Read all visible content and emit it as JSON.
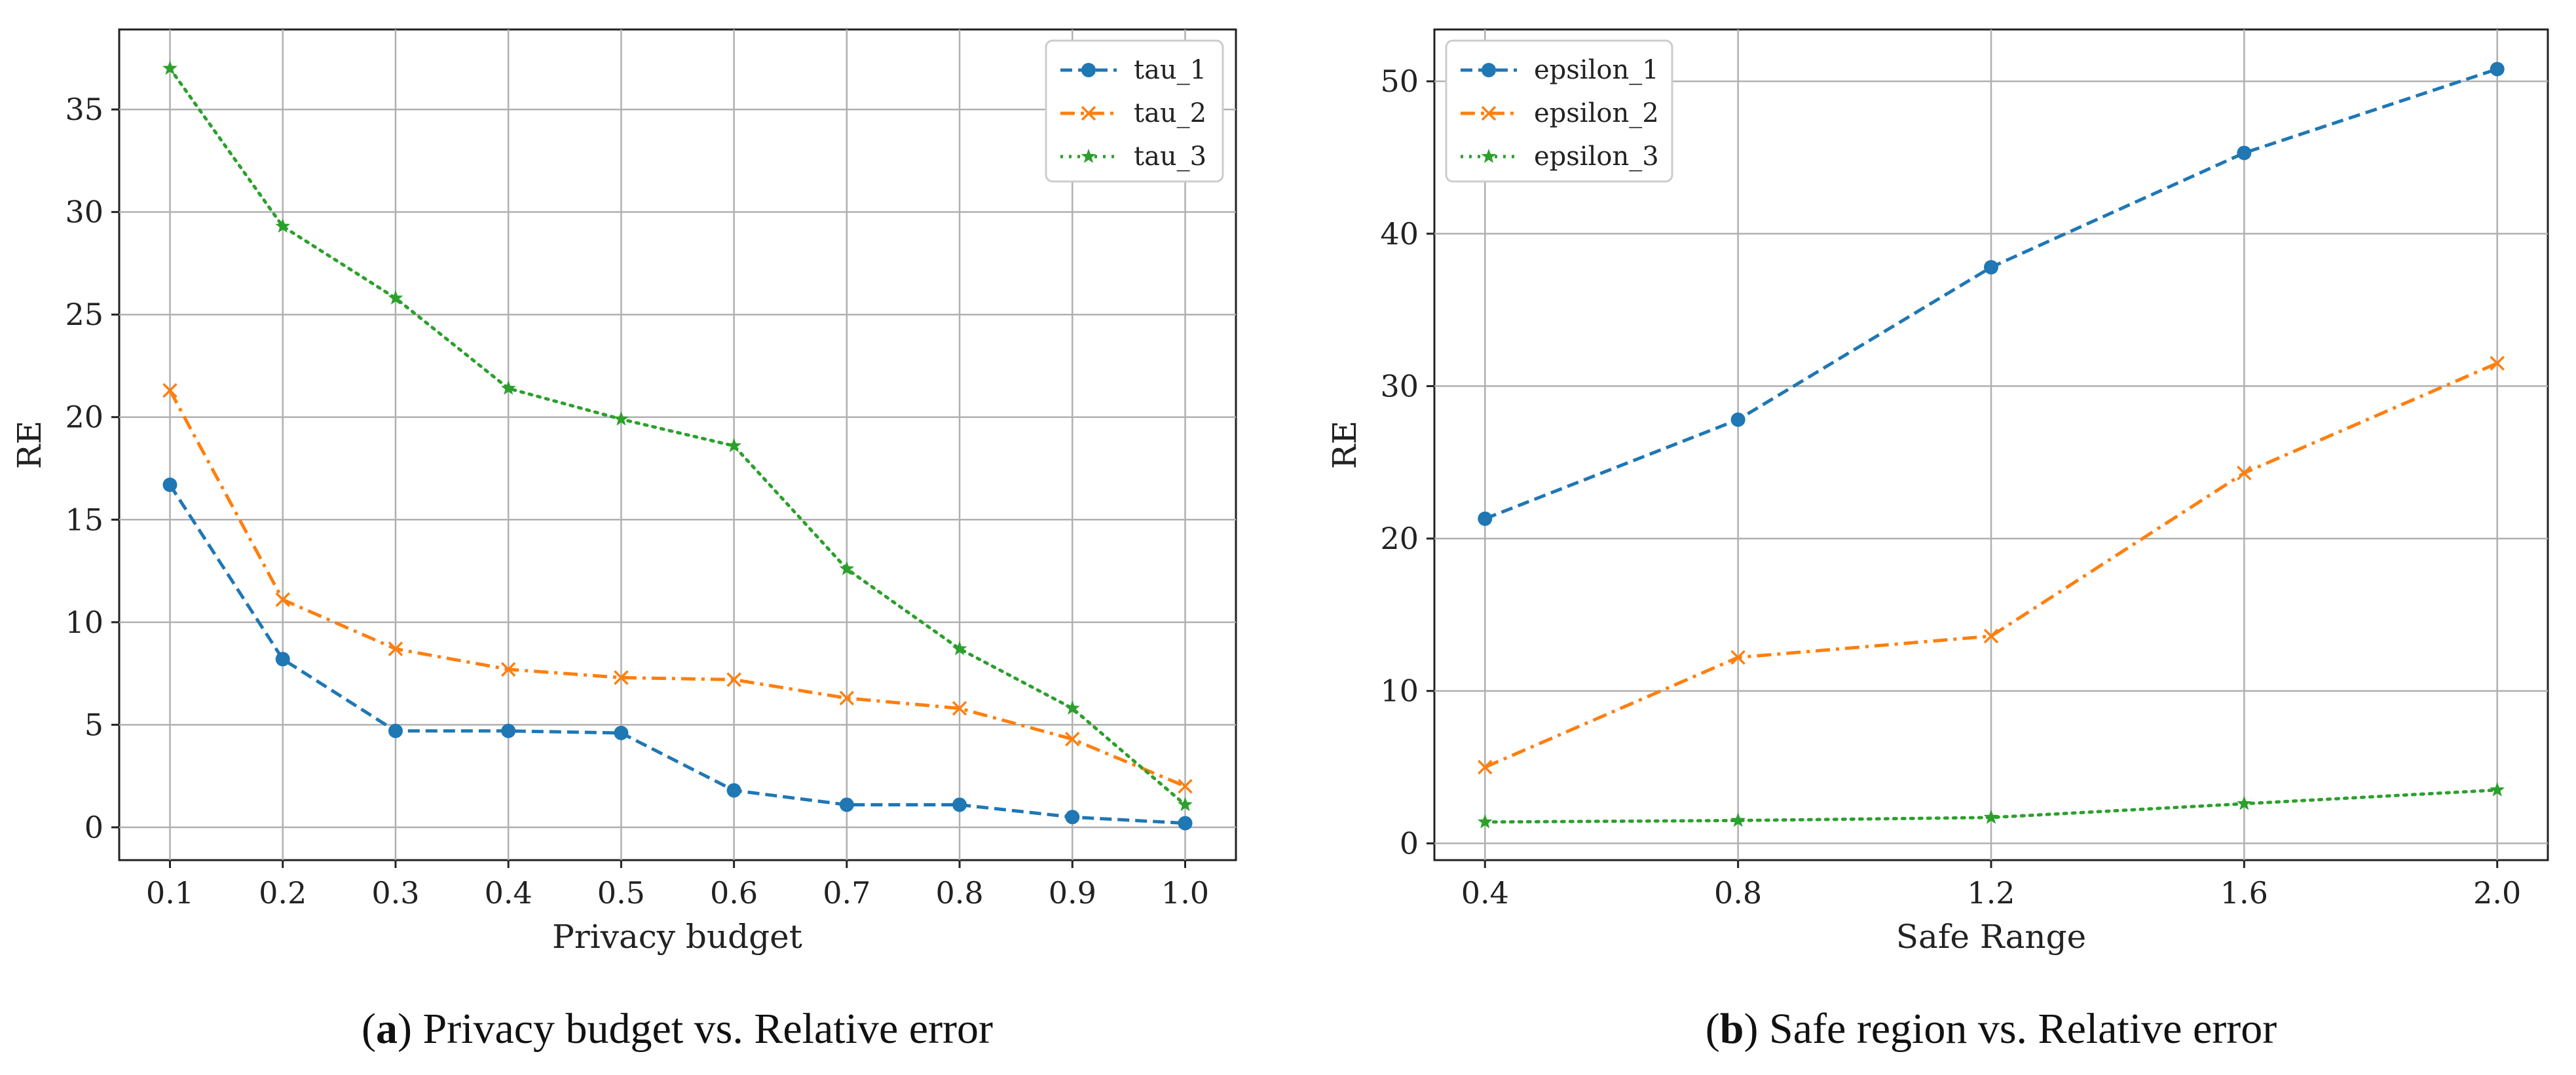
{
  "chart_data": [
    {
      "type": "line",
      "panel": "a",
      "caption_tag": "a",
      "caption_text": " Privacy budget vs. Relative error",
      "xlabel": "Privacy budget",
      "ylabel": "RE",
      "x": [
        0.1,
        0.2,
        0.3,
        0.4,
        0.5,
        0.6,
        0.7,
        0.8,
        0.9,
        1.0
      ],
      "xticks": [
        "0.1",
        "0.2",
        "0.3",
        "0.4",
        "0.5",
        "0.6",
        "0.7",
        "0.8",
        "0.9",
        "1.0"
      ],
      "xlim": [
        0.055,
        1.045
      ],
      "yticks": [
        0,
        5,
        10,
        15,
        20,
        25,
        30,
        35
      ],
      "ylim": [
        -1.6,
        38.9
      ],
      "grid": true,
      "legend_loc": "top-right",
      "series": [
        {
          "name": "tau_1",
          "color": "#1f77b4",
          "marker": "circle",
          "linestyle": "dashed",
          "values": [
            16.7,
            8.2,
            4.7,
            4.7,
            4.6,
            1.8,
            1.1,
            1.1,
            0.5,
            0.2
          ]
        },
        {
          "name": "tau_2",
          "color": "#ff7f0e",
          "marker": "x",
          "linestyle": "dashdot",
          "values": [
            21.3,
            11.1,
            8.7,
            7.7,
            7.3,
            7.2,
            6.3,
            5.8,
            4.3,
            2.0
          ]
        },
        {
          "name": "tau_3",
          "color": "#2ca02c",
          "marker": "star",
          "linestyle": "dotted",
          "values": [
            37.0,
            29.3,
            25.8,
            21.4,
            19.9,
            18.6,
            12.6,
            8.7,
            5.8,
            1.1
          ]
        }
      ]
    },
    {
      "type": "line",
      "panel": "b",
      "caption_tag": "b",
      "caption_text": " Safe region vs. Relative error",
      "xlabel": "Safe Range",
      "ylabel": "RE",
      "x": [
        0.4,
        0.8,
        1.2,
        1.6,
        2.0
      ],
      "xticks": [
        "0.4",
        "0.8",
        "1.2",
        "1.6",
        "2.0"
      ],
      "xlim": [
        0.32,
        2.08
      ],
      "yticks": [
        0,
        10,
        20,
        30,
        40,
        50
      ],
      "ylim": [
        -1.1,
        53.4
      ],
      "grid": true,
      "legend_loc": "top-left",
      "series": [
        {
          "name": "epsilon_1",
          "color": "#1f77b4",
          "marker": "circle",
          "linestyle": "dashed",
          "values": [
            21.3,
            27.8,
            37.8,
            45.3,
            50.8
          ]
        },
        {
          "name": "epsilon_2",
          "color": "#ff7f0e",
          "marker": "x",
          "linestyle": "dashdot",
          "values": [
            5.0,
            12.2,
            13.6,
            24.3,
            31.5
          ]
        },
        {
          "name": "epsilon_3",
          "color": "#2ca02c",
          "marker": "star",
          "linestyle": "dotted",
          "values": [
            1.4,
            1.5,
            1.7,
            2.6,
            3.5
          ]
        }
      ]
    }
  ]
}
